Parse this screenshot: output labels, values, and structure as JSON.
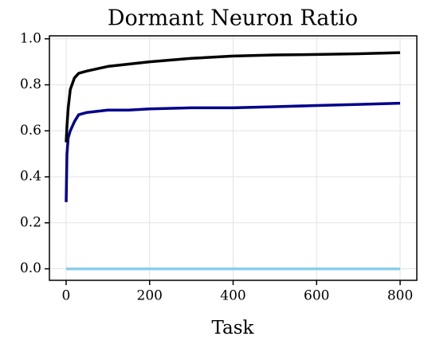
{
  "chart_data": {
    "type": "line",
    "title": "Dormant Neuron Ratio",
    "x_label": "Task",
    "x": [
      0,
      2,
      5,
      10,
      20,
      30,
      50,
      75,
      100,
      150,
      200,
      300,
      400,
      500,
      600,
      700,
      800
    ],
    "series": [
      {
        "color": "#000000",
        "values": [
          0.55,
          0.62,
          0.7,
          0.78,
          0.83,
          0.85,
          0.86,
          0.87,
          0.88,
          0.89,
          0.9,
          0.915,
          0.925,
          0.93,
          0.932,
          0.935,
          0.94
        ]
      },
      {
        "color": "#00008b",
        "values": [
          0.29,
          0.5,
          0.57,
          0.6,
          0.64,
          0.67,
          0.68,
          0.685,
          0.69,
          0.69,
          0.695,
          0.7,
          0.7,
          0.705,
          0.71,
          0.715,
          0.72
        ]
      },
      {
        "color": "#87ceeb",
        "values": [
          0,
          0,
          0,
          0,
          0,
          0,
          0,
          0,
          0,
          0,
          0,
          0,
          0,
          0,
          0,
          0,
          0
        ]
      }
    ],
    "xlim": [
      -40,
      840
    ],
    "ylim": [
      -0.05,
      1.013
    ],
    "xticks": [
      0,
      200,
      400,
      600,
      800
    ],
    "yticks": [
      {
        "value": 0,
        "label": "0.0"
      },
      {
        "value": 0.2,
        "label": "0.2"
      },
      {
        "value": 0.4,
        "label": "0.4"
      },
      {
        "value": 0.6,
        "label": "0.6"
      },
      {
        "value": 0.8,
        "label": "0.8"
      },
      {
        "value": 1.0,
        "label": "1.0"
      }
    ],
    "grid": true
  }
}
